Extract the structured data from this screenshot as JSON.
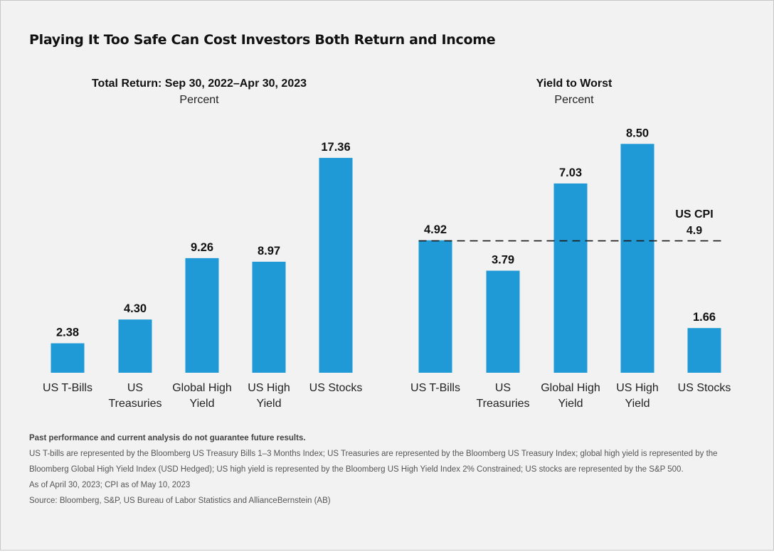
{
  "title": "Playing It Too Safe Can Cost Investors Both Return and Income",
  "chart_data": [
    {
      "type": "bar",
      "title": "Total Return: Sep 30, 2022–Apr 30, 2023",
      "subtitle": "Percent",
      "categories": [
        [
          "US T-Bills"
        ],
        [
          "US",
          "Treasuries"
        ],
        [
          "Global High",
          "Yield"
        ],
        [
          "US High",
          "Yield"
        ],
        [
          "US Stocks"
        ]
      ],
      "values": [
        2.38,
        4.3,
        9.26,
        8.97,
        17.36
      ],
      "value_labels": [
        "2.38",
        "4.30",
        "9.26",
        "8.97",
        "17.36"
      ],
      "ylim": [
        0,
        19
      ],
      "grid": false,
      "color": "#1f9ad6"
    },
    {
      "type": "bar",
      "title": "Yield to Worst",
      "subtitle": "Percent",
      "categories": [
        [
          "US T-Bills"
        ],
        [
          "US",
          "Treasuries"
        ],
        [
          "Global High",
          "Yield"
        ],
        [
          "US High",
          "Yield"
        ],
        [
          "US Stocks"
        ]
      ],
      "values": [
        4.92,
        3.79,
        7.03,
        8.5,
        1.66
      ],
      "value_labels": [
        "4.92",
        "3.79",
        "7.03",
        "8.50",
        "1.66"
      ],
      "ylim": [
        0,
        9.5
      ],
      "grid": false,
      "color": "#1f9ad6",
      "reference_line": {
        "label": "US CPI",
        "value": 4.9,
        "value_label": "4.9",
        "style": "dashed"
      }
    }
  ],
  "footnotes": {
    "disclaimer": "Past performance and current analysis do not guarantee future results.",
    "line1": "US T-bills are represented by the Bloomberg US Treasury Bills 1–3 Months Index; US Treasuries are represented by the Bloomberg US Treasury Index; global high yield is represented by the",
    "line2": "Bloomberg Global High Yield Index (USD Hedged); US high yield is represented by the Bloomberg US High Yield Index 2% Constrained; US stocks are represented by the S&P 500.",
    "asof": "As of April 30, 2023; CPI as of May 10, 2023",
    "source": "Source: Bloomberg, S&P, US Bureau of Labor Statistics and AllianceBernstein (AB)"
  }
}
